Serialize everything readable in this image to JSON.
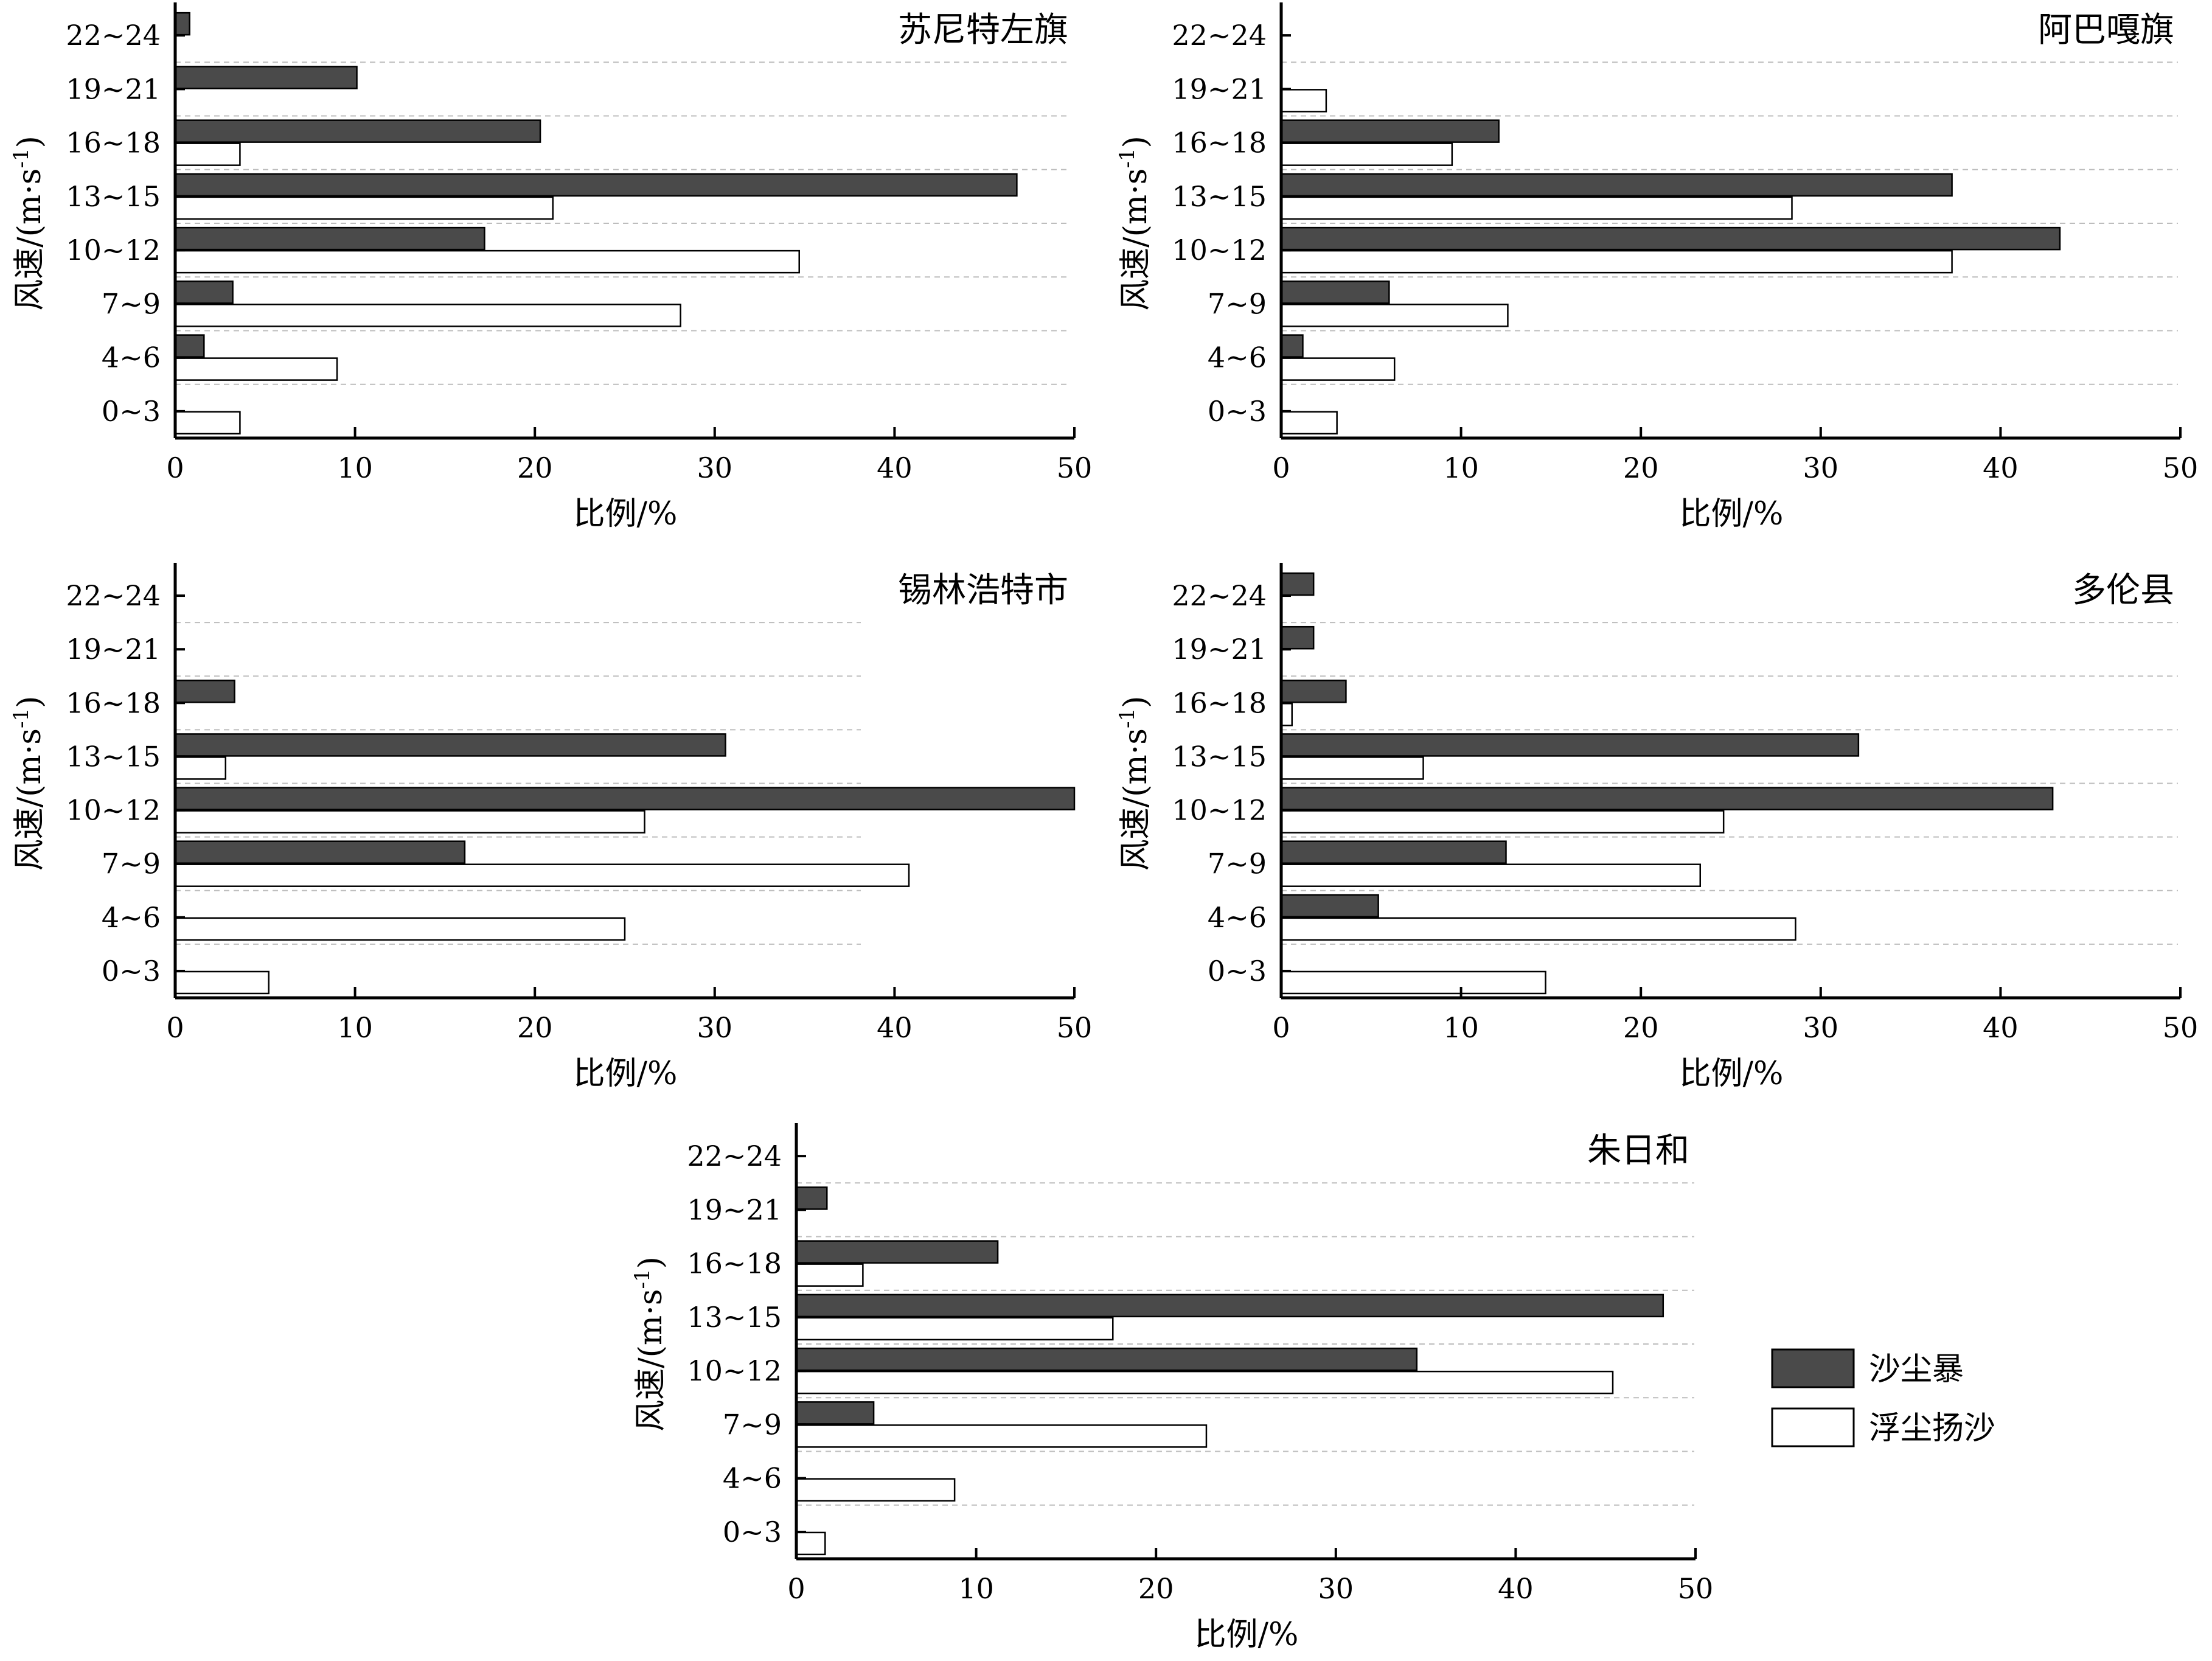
{
  "figure": {
    "xlabel": "比例/%",
    "ylabel_main": "风速/(m·s",
    "ylabel_sup": "-1",
    "ylabel_end": ")"
  },
  "legend": {
    "items": [
      {
        "label": "沙尘暴",
        "color": "#4a4a4a"
      },
      {
        "label": "浮尘扬沙",
        "color": "#ffffff"
      }
    ]
  },
  "chart_data": [
    {
      "type": "bar",
      "orientation": "horizontal",
      "title": "苏尼特左旗",
      "categories": [
        "0~3",
        "4~6",
        "7~9",
        "10~12",
        "13~15",
        "16~18",
        "19~21",
        "22~24"
      ],
      "series": [
        {
          "name": "沙尘暴",
          "values": [
            0,
            1.6,
            3.2,
            17.2,
            46.8,
            20.3,
            10.1,
            0.8
          ]
        },
        {
          "name": "浮尘扬沙",
          "values": [
            3.6,
            9.0,
            28.1,
            34.7,
            21.0,
            3.6,
            0,
            0
          ]
        }
      ],
      "xlim": [
        0,
        50
      ],
      "xticks": [
        0,
        10,
        20,
        30,
        40,
        50
      ],
      "xlabel": "比例/%",
      "ylabel": "风速/(m·s-1)",
      "grid": "horizontal-dashed"
    },
    {
      "type": "bar",
      "orientation": "horizontal",
      "title": "阿巴嘎旗",
      "categories": [
        "0~3",
        "4~6",
        "7~9",
        "10~12",
        "13~15",
        "16~18",
        "19~21",
        "22~24"
      ],
      "series": [
        {
          "name": "沙尘暴",
          "values": [
            0,
            1.2,
            6.0,
            43.3,
            37.3,
            12.1,
            0,
            0
          ]
        },
        {
          "name": "浮尘扬沙",
          "values": [
            3.1,
            6.3,
            12.6,
            37.3,
            28.4,
            9.5,
            2.5,
            0
          ]
        }
      ],
      "xlim": [
        0,
        50
      ],
      "xticks": [
        0,
        10,
        20,
        30,
        40,
        50
      ],
      "xlabel": "比例/%",
      "ylabel": "风速/(m·s-1)",
      "grid": "horizontal-dashed"
    },
    {
      "type": "bar",
      "orientation": "horizontal",
      "title": "锡林浩特市",
      "categories": [
        "0~3",
        "4~6",
        "7~9",
        "10~12",
        "13~15",
        "16~18",
        "19~21",
        "22~24"
      ],
      "series": [
        {
          "name": "沙尘暴",
          "values": [
            0,
            0,
            16.1,
            50.0,
            30.6,
            3.3,
            0,
            0
          ]
        },
        {
          "name": "浮尘扬沙",
          "values": [
            5.2,
            25.0,
            40.8,
            26.1,
            2.8,
            0,
            0,
            0
          ]
        }
      ],
      "xlim": [
        0,
        50
      ],
      "xticks": [
        0,
        10,
        20,
        30,
        40,
        50
      ],
      "xlabel": "比例/%",
      "ylabel": "风速/(m·s-1)",
      "grid": "horizontal-dashed"
    },
    {
      "type": "bar",
      "orientation": "horizontal",
      "title": "多伦县",
      "categories": [
        "0~3",
        "4~6",
        "7~9",
        "10~12",
        "13~15",
        "16~18",
        "19~21",
        "22~24"
      ],
      "series": [
        {
          "name": "沙尘暴",
          "values": [
            0,
            5.4,
            12.5,
            42.9,
            32.1,
            3.6,
            1.8,
            1.8
          ]
        },
        {
          "name": "浮尘扬沙",
          "values": [
            14.7,
            28.6,
            23.3,
            24.6,
            7.9,
            0.6,
            0,
            0
          ]
        }
      ],
      "xlim": [
        0,
        50
      ],
      "xticks": [
        0,
        10,
        20,
        30,
        40,
        50
      ],
      "xlabel": "比例/%",
      "ylabel": "风速/(m·s-1)",
      "grid": "horizontal-dashed"
    },
    {
      "type": "bar",
      "orientation": "horizontal",
      "title": "朱日和",
      "categories": [
        "0~3",
        "4~6",
        "7~9",
        "10~12",
        "13~15",
        "16~18",
        "19~21",
        "22~24"
      ],
      "series": [
        {
          "name": "沙尘暴",
          "values": [
            0,
            0,
            4.3,
            34.5,
            48.2,
            11.2,
            1.7,
            0
          ]
        },
        {
          "name": "浮尘扬沙",
          "values": [
            1.6,
            8.8,
            22.8,
            45.4,
            17.6,
            3.7,
            0,
            0
          ]
        }
      ],
      "xlim": [
        0,
        50
      ],
      "xticks": [
        0,
        10,
        20,
        30,
        40,
        50
      ],
      "xlabel": "比例/%",
      "ylabel": "风速/(m·s-1)",
      "grid": "horizontal-dashed"
    }
  ]
}
